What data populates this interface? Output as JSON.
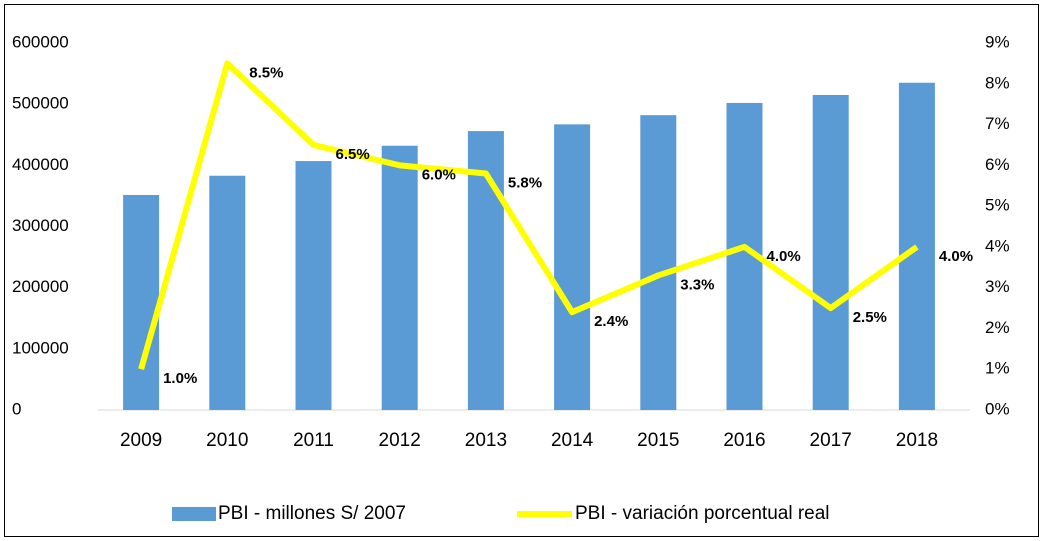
{
  "chart_data": {
    "type": "bar_line",
    "categories": [
      "2009",
      "2010",
      "2011",
      "2012",
      "2013",
      "2014",
      "2015",
      "2016",
      "2017",
      "2018"
    ],
    "series": [
      {
        "name": "PBI - millones S/ 2007",
        "type": "bar",
        "color": "#5b9bd5",
        "values": [
          351500,
          383000,
          407000,
          432000,
          456000,
          467000,
          482000,
          502000,
          515000,
          535000
        ]
      },
      {
        "name": "PBI - variación porcentual real",
        "type": "line",
        "axis": "y2",
        "color": "#ffff00",
        "values": [
          1.0,
          8.5,
          6.5,
          6.0,
          5.8,
          2.4,
          3.3,
          4.0,
          2.5,
          4.0
        ],
        "value_labels": [
          "1.0%",
          "8.5%",
          "6.5%",
          "6.0%",
          "5.8%",
          "2.4%",
          "3.3%",
          "4.0%",
          "2.5%",
          "4.0%"
        ]
      }
    ],
    "ylim": [
      0,
      600000
    ],
    "yticks": [
      0,
      100000,
      200000,
      300000,
      400000,
      500000,
      600000
    ],
    "y2lim": [
      0,
      9
    ],
    "y2ticks": [
      {
        "value": 0,
        "label": "0%"
      },
      {
        "value": 1,
        "label": "1%"
      },
      {
        "value": 2,
        "label": "2%"
      },
      {
        "value": 3,
        "label": "3%"
      },
      {
        "value": 4,
        "label": "4%"
      },
      {
        "value": 5,
        "label": "5%"
      },
      {
        "value": 6,
        "label": "6%"
      },
      {
        "value": 7,
        "label": "7%"
      },
      {
        "value": 8,
        "label": "8%"
      },
      {
        "value": 9,
        "label": "9%"
      }
    ],
    "grid": false,
    "legend": "bottom"
  }
}
